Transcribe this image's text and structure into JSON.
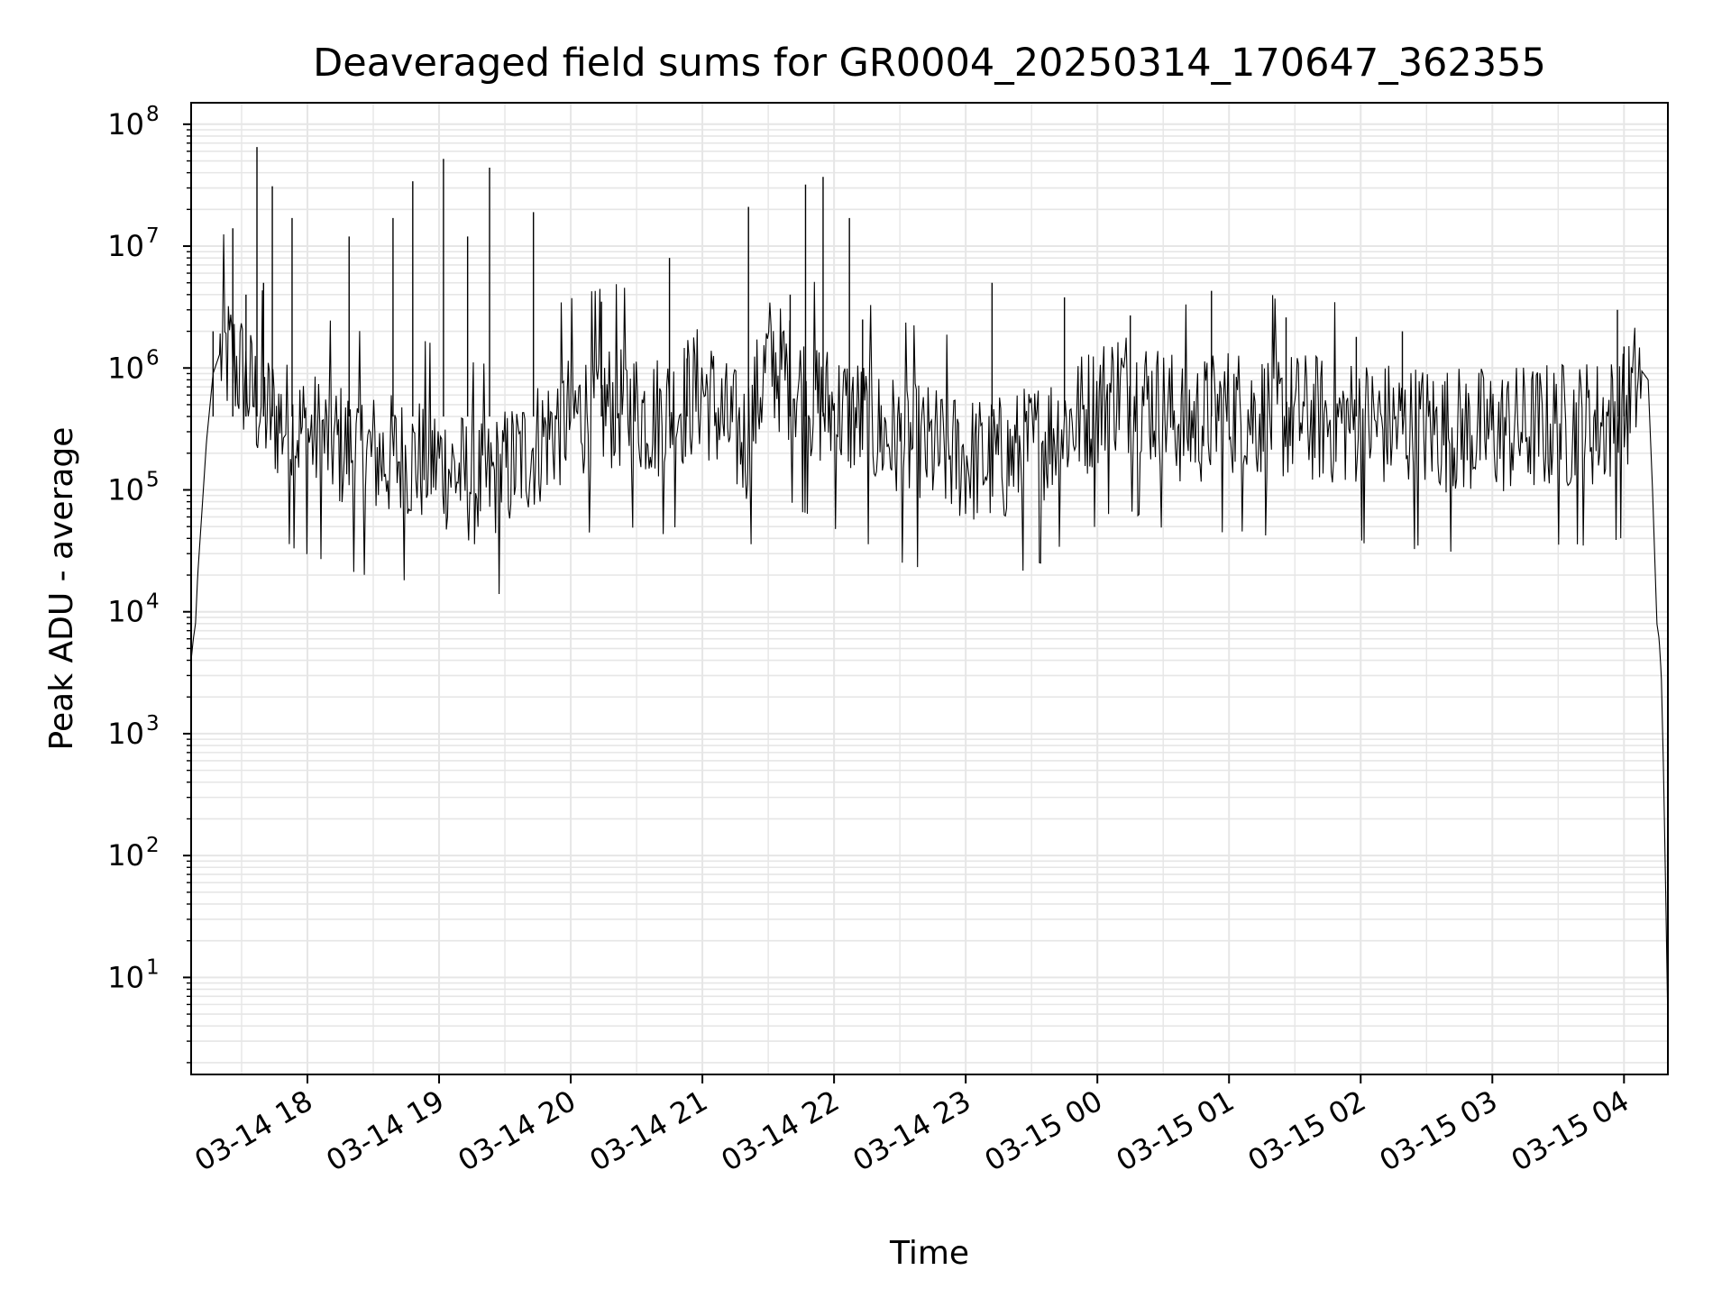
{
  "chart_data": {
    "type": "line",
    "title": "Deaveraged field sums for GR0004_20250314_170647_362355",
    "xlabel": "Time",
    "ylabel": "Peak ADU - average",
    "yscale": "log",
    "xlim": [
      "2025-03-14 17:07",
      "2025-03-15 04:20"
    ],
    "ylim": [
      1.6,
      150000000
    ],
    "grid": "major and minor, both axes",
    "line_color": "#000000",
    "x_ticks": [
      "03-14 18",
      "03-14 19",
      "03-14 20",
      "03-14 21",
      "03-14 22",
      "03-14 23",
      "03-15 00",
      "03-15 01",
      "03-15 02",
      "03-15 03",
      "03-15 04"
    ],
    "x_tick_times": [
      "2025-03-14 18:00",
      "2025-03-14 19:00",
      "2025-03-14 20:00",
      "2025-03-14 21:00",
      "2025-03-14 22:00",
      "2025-03-14 23:00",
      "2025-03-15 00:00",
      "2025-03-15 01:00",
      "2025-03-15 02:00",
      "2025-03-15 03:00",
      "2025-03-15 04:00"
    ],
    "y_ticks": [
      {
        "base": "10",
        "exp": "1",
        "value": 10
      },
      {
        "base": "10",
        "exp": "2",
        "value": 100
      },
      {
        "base": "10",
        "exp": "3",
        "value": 1000
      },
      {
        "base": "10",
        "exp": "4",
        "value": 10000
      },
      {
        "base": "10",
        "exp": "5",
        "value": 100000
      },
      {
        "base": "10",
        "exp": "6",
        "value": 1000000
      },
      {
        "base": "10",
        "exp": "7",
        "value": 10000000
      },
      {
        "base": "10",
        "exp": "8",
        "value": 100000000
      }
    ],
    "series": [
      {
        "x": [
          "2025-03-14 17:07",
          "2025-03-14 17:08",
          "2025-03-14 17:09",
          "2025-03-14 17:10",
          "2025-03-14 17:12",
          "2025-03-14 17:14",
          "2025-03-14 17:17",
          "2025-03-14 17:20",
          "2025-03-14 17:25",
          "2025-03-14 17:30",
          "2025-03-14 17:35",
          "2025-03-14 17:40",
          "2025-03-14 17:45",
          "2025-03-14 17:50",
          "2025-03-14 17:55",
          "2025-03-14 18:00",
          "2025-03-14 18:10",
          "2025-03-14 18:20",
          "2025-03-14 18:30",
          "2025-03-14 18:40",
          "2025-03-14 18:50",
          "2025-03-14 19:00",
          "2025-03-14 19:10",
          "2025-03-14 19:20",
          "2025-03-14 19:30",
          "2025-03-14 19:40",
          "2025-03-14 19:50",
          "2025-03-14 20:00",
          "2025-03-14 20:10",
          "2025-03-14 20:20",
          "2025-03-14 20:30",
          "2025-03-14 20:40",
          "2025-03-14 20:50",
          "2025-03-14 21:00",
          "2025-03-14 21:10",
          "2025-03-14 21:20",
          "2025-03-14 21:30",
          "2025-03-14 21:40",
          "2025-03-14 21:50",
          "2025-03-14 22:00",
          "2025-03-14 22:10",
          "2025-03-14 22:20",
          "2025-03-14 22:30",
          "2025-03-14 22:40",
          "2025-03-14 22:50",
          "2025-03-14 23:00",
          "2025-03-14 23:10",
          "2025-03-14 23:20",
          "2025-03-14 23:30",
          "2025-03-14 23:40",
          "2025-03-14 23:50",
          "2025-03-15 00:00",
          "2025-03-15 00:10",
          "2025-03-15 00:20",
          "2025-03-15 00:30",
          "2025-03-15 00:40",
          "2025-03-15 00:50",
          "2025-03-15 01:00",
          "2025-03-15 01:10",
          "2025-03-15 01:20",
          "2025-03-15 01:30",
          "2025-03-15 01:40",
          "2025-03-15 01:50",
          "2025-03-15 02:00",
          "2025-03-15 02:10",
          "2025-03-15 02:20",
          "2025-03-15 02:30",
          "2025-03-15 02:40",
          "2025-03-15 02:50",
          "2025-03-15 03:00",
          "2025-03-15 03:10",
          "2025-03-15 03:20",
          "2025-03-15 03:30",
          "2025-03-15 03:40",
          "2025-03-15 03:50",
          "2025-03-15 04:00",
          "2025-03-15 04:05",
          "2025-03-15 04:08",
          "2025-03-15 04:11",
          "2025-03-15 04:13",
          "2025-03-15 04:15",
          "2025-03-15 04:16",
          "2025-03-15 04:17",
          "2025-03-15 04:18",
          "2025-03-15 04:19",
          "2025-03-15 04:20"
        ],
        "values": [
          4000,
          6000,
          8000,
          20000,
          70000,
          250000,
          900000,
          1300000,
          1200000,
          900000,
          600000,
          450000,
          400000,
          350000,
          320000,
          280000,
          250000,
          210000,
          190000,
          180000,
          175000,
          170000,
          130000,
          110000,
          140000,
          200000,
          300000,
          400000,
          450000,
          500000,
          450000,
          400000,
          500000,
          700000,
          350000,
          250000,
          1200000,
          800000,
          550000,
          450000,
          400000,
          300000,
          250000,
          220000,
          200000,
          180000,
          170000,
          180000,
          220000,
          300000,
          380000,
          500000,
          700000,
          600000,
          450000,
          350000,
          380000,
          450000,
          420000,
          400000,
          400000,
          380000,
          370000,
          360000,
          340000,
          330000,
          320000,
          310000,
          300000,
          300000,
          310000,
          320000,
          330000,
          340000,
          360000,
          400000,
          700000,
          950000,
          800000,
          100000,
          8000,
          6000,
          3000,
          500,
          50,
          4
        ]
      }
    ],
    "spikes": {
      "x": [
        "2025-03-14 17:17",
        "2025-03-14 17:26",
        "2025-03-14 17:32",
        "2025-03-14 17:37",
        "2025-03-14 17:40",
        "2025-03-14 17:44",
        "2025-03-14 17:53",
        "2025-03-14 18:19",
        "2025-03-14 18:39",
        "2025-03-14 18:48",
        "2025-03-14 19:02",
        "2025-03-14 19:13",
        "2025-03-14 19:23",
        "2025-03-14 19:43",
        "2025-03-14 20:14",
        "2025-03-14 20:45",
        "2025-03-14 20:53",
        "2025-03-14 21:21",
        "2025-03-14 21:40",
        "2025-03-14 21:47",
        "2025-03-14 21:55",
        "2025-03-14 22:07",
        "2025-03-14 22:13",
        "2025-03-14 23:12",
        "2025-03-14 23:45",
        "2025-03-15 00:15",
        "2025-03-15 00:52",
        "2025-03-15 01:26",
        "2025-03-15 01:58",
        "2025-03-15 02:19",
        "2025-03-15 03:57",
        "2025-03-15 04:00"
      ],
      "values": [
        2000000,
        14000000,
        4000000,
        65000000,
        5000000,
        31000000,
        17000000,
        12000000,
        17000000,
        34000000,
        52000000,
        12000000,
        44000000,
        19000000,
        3500000,
        8000000,
        1200000,
        21000000,
        4000000,
        32000000,
        37000000,
        17000000,
        2500000,
        5000000,
        3800000,
        2700000,
        4300000,
        2600000,
        1800000,
        2000000,
        3000000,
        1500000
      ]
    }
  }
}
